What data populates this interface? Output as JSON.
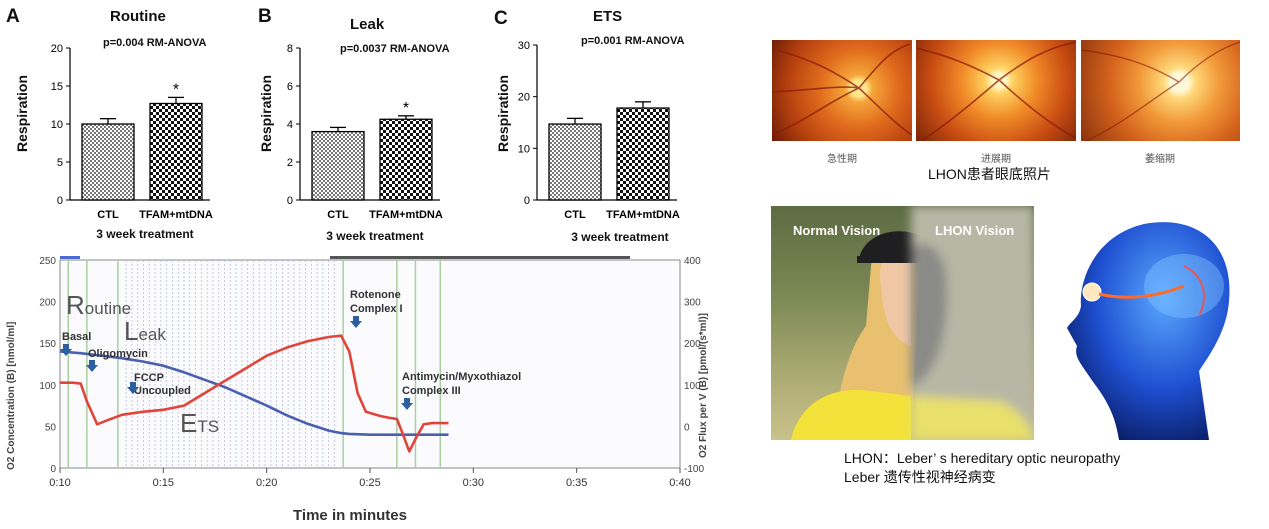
{
  "bar_panels": [
    {
      "letter": "A",
      "title": "Routine",
      "stat": "p=0.004 RM-ANOVA",
      "ylabel": "Respiration",
      "xlabel": "3 week treatment",
      "yticks": [
        "0",
        "5",
        "10",
        "15",
        "20"
      ],
      "star": "*"
    },
    {
      "letter": "B",
      "title": "Leak",
      "stat": "p=0.0037  RM-ANOVA",
      "ylabel": "Respiration",
      "xlabel": "3 week treatment",
      "yticks": [
        "0",
        "2",
        "4",
        "6",
        "8"
      ],
      "star": "*"
    },
    {
      "letter": "C",
      "title": "ETS",
      "stat": "p=0.001 RM-ANOVA",
      "ylabel": "Respiration",
      "xlabel": "3 week treatment",
      "yticks": [
        "0",
        "10",
        "20",
        "30"
      ],
      "star": ""
    }
  ],
  "chart_data": [
    {
      "type": "bar",
      "title": "Routine",
      "ylabel": "Respiration",
      "xlabel": "3 week treatment",
      "categories": [
        "CTL",
        "TFAM+mtDNA"
      ],
      "values": [
        10,
        12.7
      ],
      "errors": [
        0.7,
        0.8
      ],
      "ylim": [
        0,
        20
      ],
      "annotation": "p=0.004 RM-ANOVA"
    },
    {
      "type": "bar",
      "title": "Leak",
      "ylabel": "Respiration",
      "xlabel": "3 week treatment",
      "categories": [
        "CTL",
        "TFAM+mtDNA"
      ],
      "values": [
        3.6,
        4.25
      ],
      "errors": [
        0.22,
        0.18
      ],
      "ylim": [
        0,
        8
      ],
      "annotation": "p=0.0037  RM-ANOVA"
    },
    {
      "type": "bar",
      "title": "ETS",
      "ylabel": "Respiration",
      "xlabel": "3 week treatment",
      "categories": [
        "CTL",
        "TFAM+mtDNA"
      ],
      "values": [
        14.7,
        17.8
      ],
      "errors": [
        1.1,
        1.2
      ],
      "ylim": [
        0,
        30
      ],
      "annotation": "p=0.001 RM-ANOVA"
    },
    {
      "type": "line",
      "xlabel": "Time in minutes",
      "ylabel_left": "O2 Concentration (B) [nmol/ml]",
      "ylabel_right": "O2 Flux per V (B) [pmol/(s*ml)]",
      "xticks": [
        "0:10",
        "0:15",
        "0:20",
        "0:25",
        "0:30",
        "0:35",
        "0:40"
      ],
      "yticks_left": [
        "0",
        "50",
        "100",
        "150",
        "200",
        "250"
      ],
      "yticks_right": [
        "-100",
        "0",
        "100",
        "200",
        "300",
        "400"
      ],
      "ylim_left": [
        0,
        250
      ],
      "ylim_right": [
        -100,
        400
      ],
      "series": [
        {
          "color": "#4a5fb0",
          "axis": "left",
          "x": [
            10,
            11,
            12,
            13,
            14,
            15,
            16,
            17,
            18,
            19,
            20,
            21,
            22,
            23,
            23.6,
            24,
            25,
            26,
            27,
            28,
            28.8
          ],
          "y": [
            140,
            138,
            135,
            132,
            128,
            123,
            115,
            106,
            97,
            86,
            75,
            63,
            53,
            45,
            42,
            41,
            40,
            40,
            40,
            40,
            40
          ]
        },
        {
          "color": "#e0443a",
          "axis": "right",
          "x": [
            10,
            10.6,
            11,
            11.3,
            11.8,
            12.3,
            13,
            14,
            15,
            16,
            17,
            18,
            19,
            20,
            21,
            22,
            23,
            23.6,
            24,
            24.4,
            24.8,
            25.5,
            26,
            26.3,
            26.6,
            26.9,
            27.2,
            27.6,
            28,
            28.8
          ],
          "y": [
            105,
            105,
            103,
            60,
            5,
            15,
            28,
            35,
            40,
            50,
            80,
            110,
            140,
            170,
            190,
            205,
            215,
            218,
            180,
            80,
            35,
            25,
            20,
            18,
            -20,
            -60,
            -30,
            5,
            8,
            8
          ]
        }
      ],
      "annotations": [
        {
          "text": "Routine",
          "big": "R"
        },
        {
          "text": "Leak",
          "big": "L"
        },
        {
          "text": "ETS",
          "big": "E"
        },
        {
          "text": "Basal"
        },
        {
          "text": "Oligomycin"
        },
        {
          "text": "FCCP"
        },
        {
          "text": "Uncoupled"
        },
        {
          "text": "Rotenone"
        },
        {
          "text": "Complex I"
        },
        {
          "text": "Antimycin/Myxothiazol"
        },
        {
          "text": "Complex III"
        }
      ]
    }
  ],
  "right": {
    "fundus_captions": [
      "急性期",
      "进展期",
      "萎缩期"
    ],
    "fundus_title": "LHON患者眼底照片",
    "normal_vision": "Normal Vision",
    "lhon_vision": "LHON Vision",
    "caption_line1": "LHON：Leber’ s hereditary optic neuropathy",
    "caption_line2": "Leber 遗传性视神经病变"
  },
  "colors": {
    "ctl_bar": "#bdbdbd",
    "trt_bar": "#9a9a9a",
    "blue_line": "#4a5fb0",
    "red_line": "#e0443a"
  }
}
